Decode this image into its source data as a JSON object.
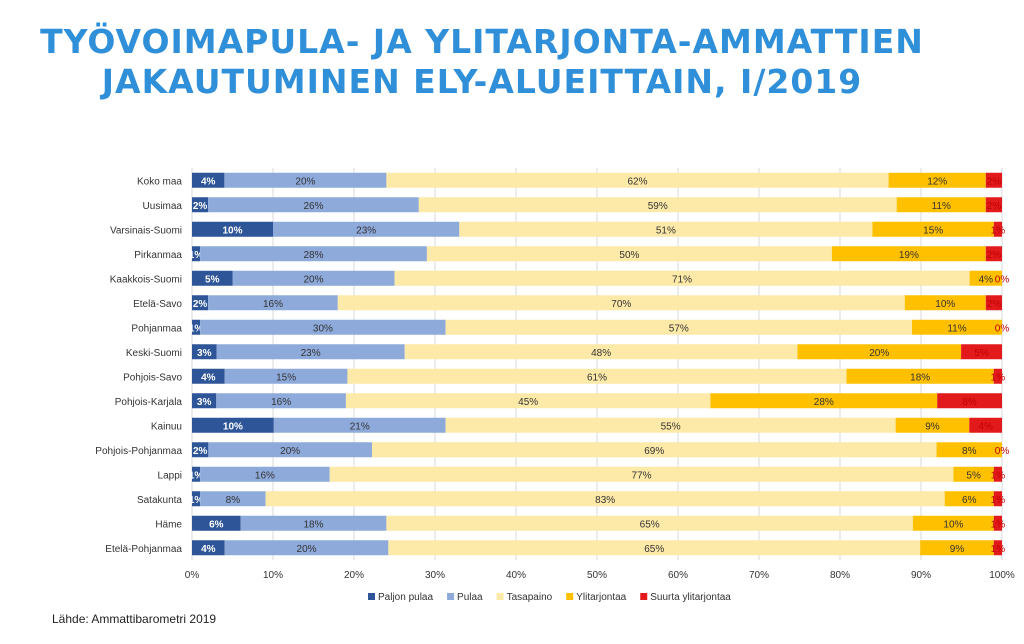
{
  "header": {
    "title_line1": "TYÖVOIMAPULA- JA YLITARJONTA-AMMATTIEN",
    "title_line2": "JAKAUTUMINEN ELY-ALUEITTAIN, I/2019"
  },
  "footer": {
    "source": "Lähde: Ammattibarometri 2019"
  },
  "chart_data": {
    "type": "bar",
    "orientation": "horizontal",
    "stacked": "percent",
    "categories": [
      "Koko maa",
      "Uusimaa",
      "Varsinais-Suomi",
      "Pirkanmaa",
      "Kaakkois-Suomi",
      "Etelä-Savo",
      "Pohjanmaa",
      "Keski-Suomi",
      "Pohjois-Savo",
      "Pohjois-Karjala",
      "Kainuu",
      "Pohjois-Pohjanmaa",
      "Lappi",
      "Satakunta",
      "Häme",
      "Etelä-Pohjanmaa"
    ],
    "series": [
      {
        "name": "Paljon pulaa",
        "color": "#2e5597",
        "values": [
          4,
          2,
          10,
          1,
          5,
          2,
          1,
          3,
          4,
          3,
          10,
          2,
          1,
          1,
          6,
          4
        ]
      },
      {
        "name": "Pulaa",
        "color": "#8eaadb",
        "values": [
          20,
          26,
          23,
          28,
          20,
          16,
          30,
          23,
          15,
          16,
          21,
          20,
          16,
          8,
          18,
          20
        ]
      },
      {
        "name": "Tasapaino",
        "color": "#fde9a8",
        "values": [
          62,
          59,
          51,
          50,
          71,
          70,
          57,
          48,
          61,
          45,
          55,
          69,
          77,
          83,
          65,
          65
        ]
      },
      {
        "name": "Ylitarjontaa",
        "color": "#ffc000",
        "values": [
          12,
          11,
          15,
          19,
          4,
          10,
          11,
          20,
          18,
          28,
          9,
          8,
          5,
          6,
          10,
          9
        ]
      },
      {
        "name": "Suurta ylitarjontaa",
        "color": "#e31a1c",
        "values": [
          2,
          2,
          1,
          2,
          0,
          2,
          0,
          5,
          1,
          8,
          4,
          0,
          1,
          1,
          1,
          1
        ]
      }
    ],
    "xlim": [
      0,
      100
    ],
    "xticks": [
      "0%",
      "10%",
      "20%",
      "30%",
      "40%",
      "50%",
      "60%",
      "70%",
      "80%",
      "90%",
      "100%"
    ],
    "legend": "bottom",
    "grid": true
  }
}
